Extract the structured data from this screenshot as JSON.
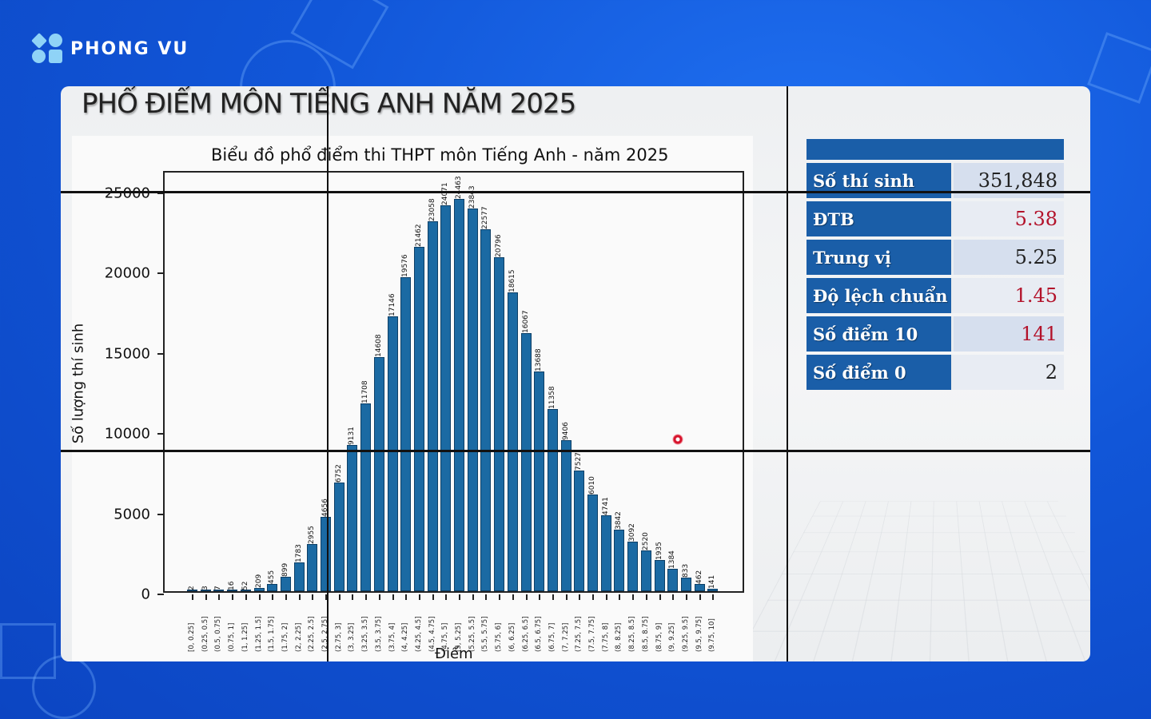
{
  "brand": {
    "name": "PHONG VU"
  },
  "page": {
    "main_title": "PHỔ ĐIỂM MÔN TIẾNG ANH NĂM 2025"
  },
  "chart_data": {
    "type": "bar",
    "title": "Biểu đồ phổ điểm thi THPT môn Tiếng Anh - năm 2025",
    "xlabel": "Điểm",
    "ylabel": "Số lượng thí sinh",
    "ylim": [
      0,
      25000
    ],
    "yticks": [
      "0",
      "5000",
      "10000",
      "15000",
      "20000",
      "25000"
    ],
    "grid": false,
    "bar_color": "#1b6aa3",
    "categories": [
      "[0, 0.25]",
      "(0.25, 0.5]",
      "(0.5, 0.75]",
      "(0.75, 1]",
      "(1, 1.25]",
      "(1.25, 1.5]",
      "(1.5, 1.75]",
      "(1.75, 2]",
      "(2, 2.25]",
      "(2.25, 2.5]",
      "(2.5, 2.75]",
      "(2.75, 3]",
      "(3, 3.25]",
      "(3.25, 3.5]",
      "(3.5, 3.75]",
      "(3.75, 4]",
      "(4, 4.25]",
      "(4.25, 4.5]",
      "(4.5, 4.75]",
      "(4.75, 5]",
      "(5, 5.25]",
      "(5.25, 5.5]",
      "(5.5, 5.75]",
      "(5.75, 6]",
      "(6, 6.25]",
      "(6.25, 6.5]",
      "(6.5, 6.75]",
      "(6.75, 7]",
      "(7, 7.25]",
      "(7.25, 7.5]",
      "(7.5, 7.75]",
      "(7.75, 8]",
      "(8, 8.25]",
      "(8.25, 8.5]",
      "(8.5, 8.75]",
      "(8.75, 9]",
      "(9, 9.25]",
      "(9.25, 9.5]",
      "(9.5, 9.75]",
      "(9.75, 10]"
    ],
    "values": [
      2,
      3,
      7,
      16,
      52,
      209,
      455,
      899,
      1783,
      2955,
      4656,
      6752,
      9131,
      11708,
      14608,
      17146,
      19576,
      21462,
      23058,
      24071,
      24463,
      23843,
      22577,
      20796,
      18615,
      16067,
      13688,
      11358,
      9406,
      7527,
      6010,
      4741,
      3842,
      3092,
      2520,
      1935,
      1384,
      833,
      462,
      141
    ]
  },
  "stats_table": {
    "rows": [
      {
        "label": "Số thí sinh",
        "value": "351,848",
        "color": "#222222"
      },
      {
        "label": "ĐTB",
        "value": "5.38",
        "color": "#b3122a"
      },
      {
        "label": "Trung vị",
        "value": "5.25",
        "color": "#222222"
      },
      {
        "label": "Độ lệch chuẩn",
        "value": "1.45",
        "color": "#b3122a"
      },
      {
        "label": "Số điểm 10",
        "value": "141",
        "color": "#b3122a"
      },
      {
        "label": "Số điểm 0",
        "value": "2",
        "color": "#222222"
      }
    ]
  }
}
